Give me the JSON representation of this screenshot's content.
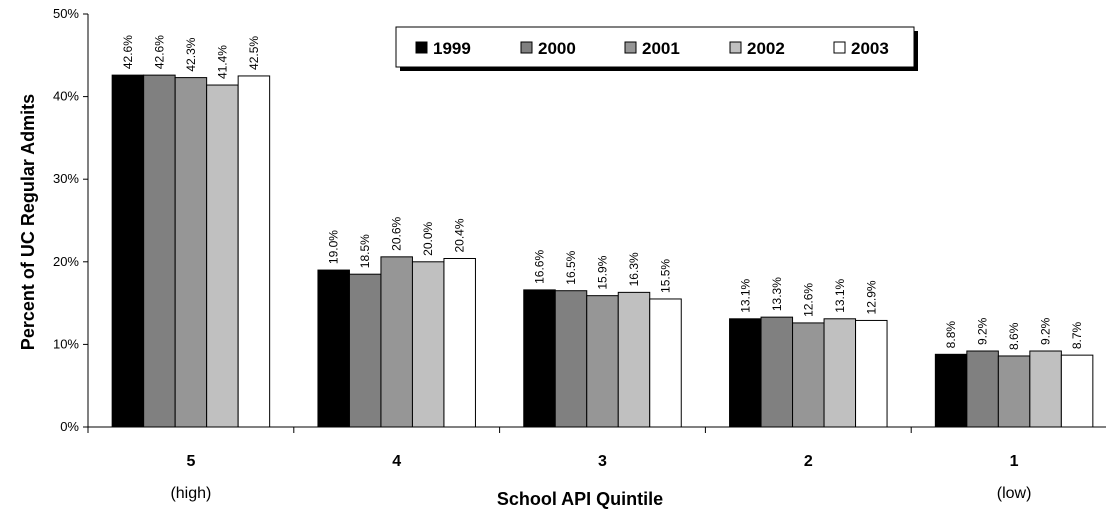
{
  "chart_data": {
    "type": "bar",
    "title": "",
    "xlabel": "School API Quintile",
    "ylabel": "Percent of UC Regular Admits",
    "ylim": [
      0,
      50
    ],
    "y_ticks": [
      "0%",
      "10%",
      "20%",
      "30%",
      "40%",
      "50%"
    ],
    "categories": [
      "5",
      "4",
      "3",
      "2",
      "1"
    ],
    "category_sublabels": [
      "(high)",
      "",
      "",
      "",
      "(low)"
    ],
    "legend_position": "top-center",
    "grid": false,
    "series": [
      {
        "name": "1999",
        "color": "#000000",
        "values": [
          42.6,
          19.0,
          16.6,
          13.1,
          8.8
        ],
        "labels": [
          "42.6%",
          "19.0%",
          "16.6%",
          "13.1%",
          "8.8%"
        ]
      },
      {
        "name": "2000",
        "color": "#808080",
        "values": [
          42.6,
          18.5,
          16.5,
          13.3,
          9.2
        ],
        "labels": [
          "42.6%",
          "18.5%",
          "16.5%",
          "13.3%",
          "9.2%"
        ]
      },
      {
        "name": "2001",
        "color": "#969696",
        "values": [
          42.3,
          20.6,
          15.9,
          12.6,
          8.6
        ],
        "labels": [
          "42.3%",
          "20.6%",
          "15.9%",
          "12.6%",
          "8.6%"
        ]
      },
      {
        "name": "2002",
        "color": "#c0c0c0",
        "values": [
          41.4,
          20.0,
          16.3,
          13.1,
          9.2
        ],
        "labels": [
          "41.4%",
          "20.0%",
          "16.3%",
          "13.1%",
          "9.2%"
        ]
      },
      {
        "name": "2003",
        "color": "#ffffff",
        "values": [
          42.5,
          20.4,
          15.5,
          12.9,
          8.7
        ],
        "labels": [
          "42.5%",
          "20.4%",
          "15.5%",
          "12.9%",
          "8.7%"
        ]
      }
    ]
  }
}
